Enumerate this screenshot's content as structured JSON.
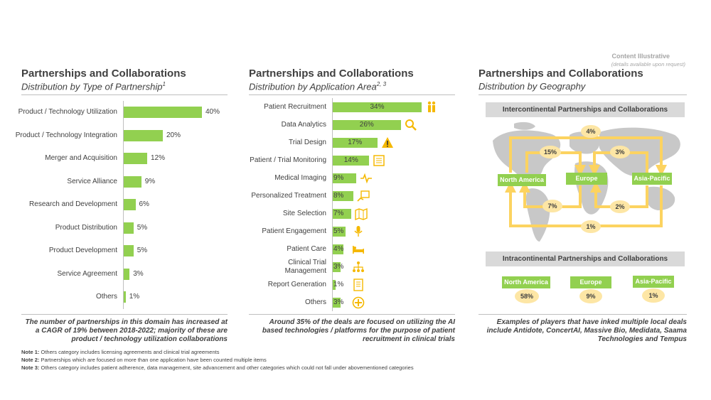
{
  "corner": {
    "title": "Content Illustrative",
    "subtitle": "(details available upon request)"
  },
  "panels": [
    {
      "title": "Partnerships and Collaborations",
      "subtitle": "Distribution by Type of Partnership",
      "sup": "1"
    },
    {
      "title": "Partnerships and Collaborations",
      "subtitle": "Distribution by Application Area",
      "sup": "2, 3"
    },
    {
      "title": "Partnerships and Collaborations",
      "subtitle": "Distribution by Geography",
      "sup": ""
    }
  ],
  "chart_data": [
    {
      "type": "bar",
      "orientation": "horizontal",
      "categories": [
        "Product / Technology Utilization",
        "Product / Technology Integration",
        "Merger and Acquisition",
        "Service Alliance",
        "Research and Development",
        "Product Distribution",
        "Product Development",
        "Service Agreement",
        "Others"
      ],
      "values": [
        40,
        20,
        12,
        9,
        6,
        5,
        5,
        3,
        1
      ],
      "labels": [
        "40%",
        "20%",
        "12%",
        "9%",
        "6%",
        "5%",
        "5%",
        "3%",
        "1%"
      ],
      "color": "#92d050"
    },
    {
      "type": "bar",
      "orientation": "horizontal",
      "categories": [
        "Patient Recruitment",
        "Data Analytics",
        "Trial Design",
        "Patient / Trial Monitoring",
        "Medical Imaging",
        "Personalized Treatment",
        "Site Selection",
        "Patient Engagement",
        "Patient Care",
        "Clinical Trial Management",
        "Report Generation",
        "Others"
      ],
      "values": [
        34,
        26,
        17,
        14,
        9,
        8,
        7,
        5,
        4,
        3,
        1,
        3
      ],
      "labels": [
        "34%",
        "26%",
        "17%",
        "14%",
        "9%",
        "8%",
        "7%",
        "5%",
        "4%",
        "3%",
        "1%",
        "3%"
      ],
      "icons": [
        "people-icon",
        "magnifier-icon",
        "warning-icon",
        "monitor-icon",
        "pulse-icon",
        "treatment-icon",
        "map-icon",
        "microphone-icon",
        "bed-icon",
        "hierarchy-icon",
        "report-icon",
        "plus-icon"
      ],
      "color": "#92d050",
      "icon_color": "#f5b800"
    }
  ],
  "geography": {
    "inter_title": "Intercontinental Partnerships and Collaborations",
    "regions": [
      "North America",
      "Europe",
      "Asia-Pacific"
    ],
    "flows": {
      "top": "4%",
      "na_eu": "15%",
      "eu_ap": "3%",
      "eu_na": "7%",
      "ap_eu": "2%",
      "bottom": "1%"
    },
    "intra_title": "Intracontinental Partnerships and Collaborations",
    "intra": [
      {
        "region": "North America",
        "value": "58%"
      },
      {
        "region": "Europe",
        "value": "9%"
      },
      {
        "region": "Asia-Pacific",
        "value": "1%"
      }
    ],
    "arrow_color": "#fcd360"
  },
  "footnotes": [
    "The number of partnerships in this domain has increased at a CAGR of 19% between 2018-2022; majority of these are product / technology utilization collaborations",
    "Around 35% of the deals are focused on utilizing the AI based technologies / platforms for the purpose of patient recruitment in clinical trials",
    "Examples of players that have inked multiple local deals include Antidote, ConcertAI, Massive Bio, Medidata, Saama Technologies and Tempus"
  ],
  "notes": [
    {
      "label": "Note 1:",
      "text": "Others category includes licensing agreements and clinical trial agreements"
    },
    {
      "label": "Note 2:",
      "text": "Partnerships which are focused on more than one application have been counted multiple items"
    },
    {
      "label": "Note 3:",
      "text": "Others category includes patient adherence, data management, site advancement and other categories which could not fall under abovementioned categories"
    }
  ]
}
